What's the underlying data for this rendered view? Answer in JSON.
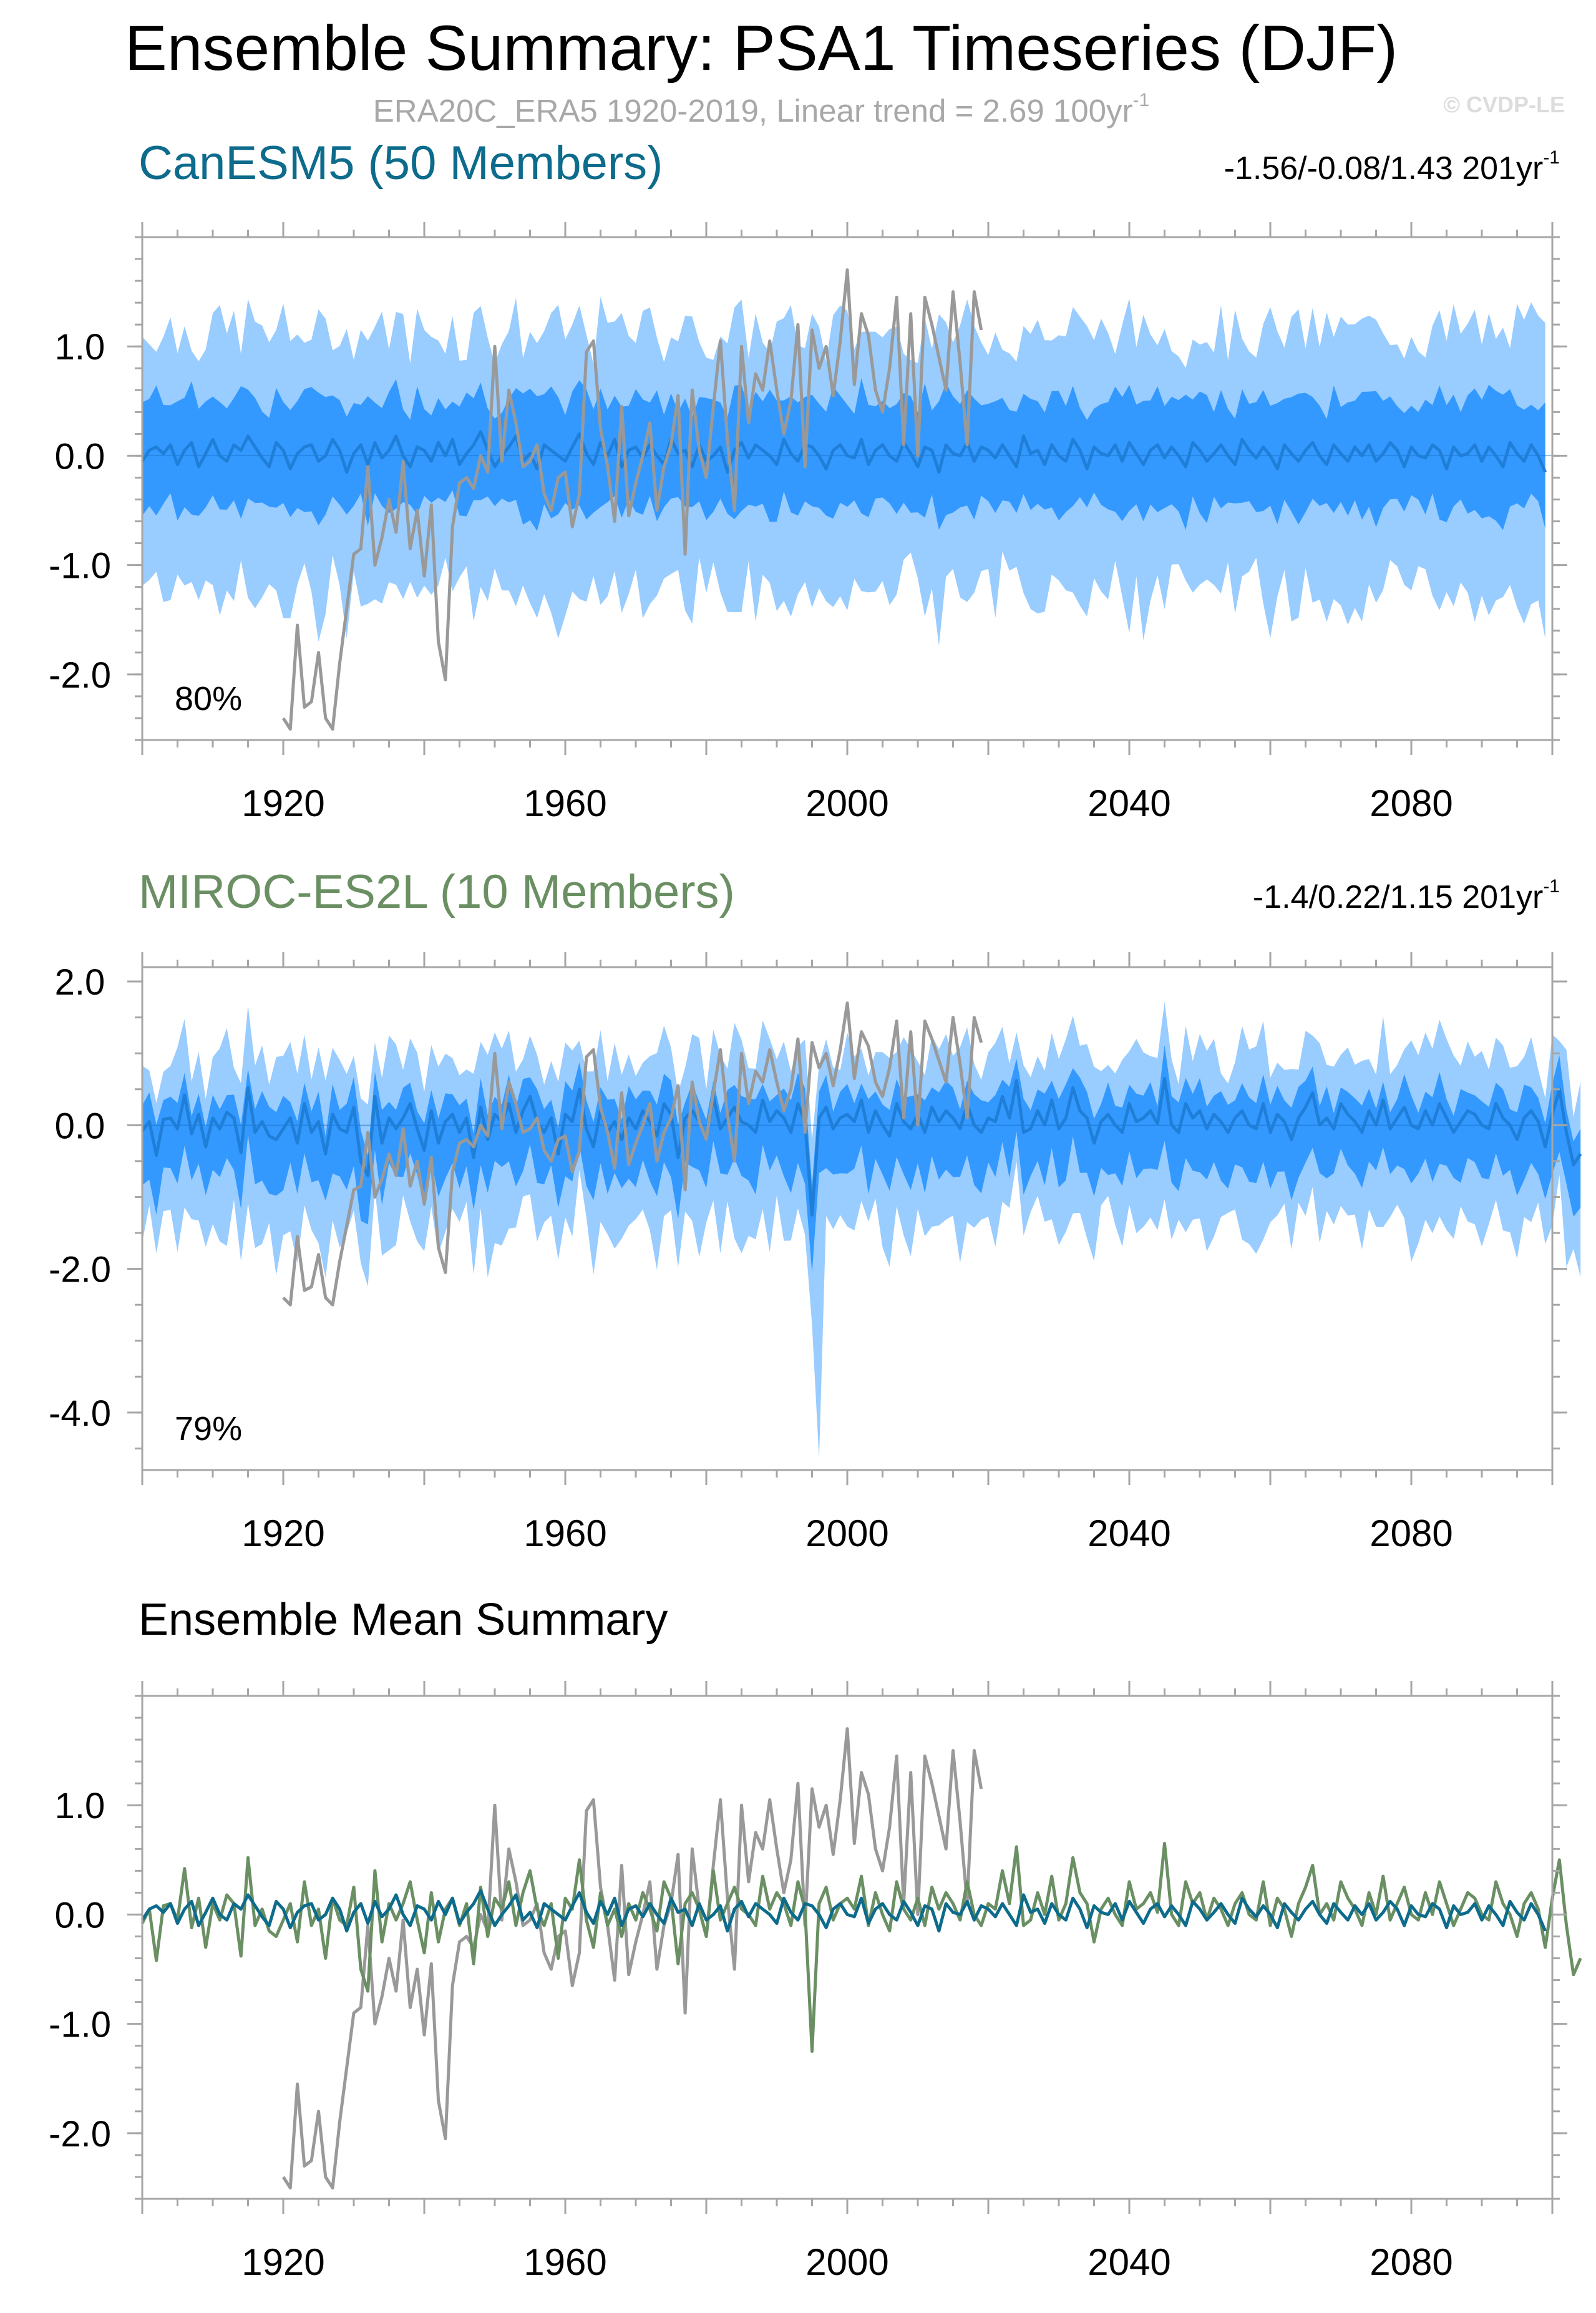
{
  "title": "Ensemble Summary: PSA1 Timeseries (DJF)",
  "subtitle": "ERA20C_ERA5 1920-2019, Linear trend = 2.69 100yr",
  "subtitle_sup": "-1",
  "watermark": "© CVDP-LE",
  "colors": {
    "outer_band": "#99ccff",
    "inner_band": "#3399ff",
    "ens_mean_line": "#1f7fd8",
    "obs": "#999999",
    "canesm5": "#0d6b8c",
    "miroc": "#6a8f63",
    "axis": "#a6a6a6"
  },
  "chart_data": [
    {
      "type": "area",
      "name": "canesm5",
      "title": "CanESM5 (50 Members)",
      "stats": "-1.56/-0.08/1.43 201yr",
      "stats_sup": "-1",
      "percent_label": "80%",
      "xlim": [
        1900,
        2100
      ],
      "ylim": [
        -2.6,
        2.0
      ],
      "xticks": [
        "1920",
        "1960",
        "2000",
        "2040",
        "2080"
      ],
      "yticks": [
        "1.0",
        "0.0",
        "-1.0",
        "-2.0"
      ],
      "outer_halfwidth": 1.05,
      "inner_halfwidth": 0.48,
      "band_center": -0.1,
      "series": [
        "ensemble_mean",
        "10-90th percentile",
        "25-75th percentile",
        "observations"
      ]
    },
    {
      "type": "area",
      "name": "miroc-es2l",
      "title": "MIROC-ES2L (10 Members)",
      "stats": "-1.4/0.22/1.15 201yr",
      "stats_sup": "-1",
      "percent_label": "79%",
      "xlim": [
        1900,
        2100
      ],
      "ylim": [
        -4.8,
        2.2
      ],
      "xticks": [
        "1920",
        "1960",
        "2000",
        "2040",
        "2080"
      ],
      "yticks": [
        "2.0",
        "0.0",
        "-2.0",
        "-4.0"
      ],
      "outer_halfwidth": 1.05,
      "inner_halfwidth": 0.52,
      "band_center": -0.3,
      "series": [
        "ensemble_mean",
        "10-90th percentile",
        "25-75th percentile",
        "observations"
      ]
    },
    {
      "type": "line",
      "name": "ensemble-mean-summary",
      "title": "Ensemble Mean Summary",
      "xlim": [
        1900,
        2100
      ],
      "ylim": [
        -2.6,
        2.0
      ],
      "xticks": [
        "1920",
        "1960",
        "2000",
        "2040",
        "2080"
      ],
      "yticks": [
        "1.0",
        "0.0",
        "-1.0",
        "-2.0"
      ],
      "series": [
        "CanESM5 ensemble mean",
        "MIROC-ES2L ensemble mean",
        "ERA20C_ERA5"
      ]
    }
  ],
  "obs_series": {
    "x_start": 1920,
    "values": [
      -2.4,
      -2.5,
      -1.55,
      -2.3,
      -2.25,
      -1.8,
      -2.4,
      -2.5,
      -1.9,
      -1.4,
      -0.9,
      -0.85,
      -0.1,
      -1.0,
      -0.75,
      -0.4,
      -0.7,
      -0.05,
      -0.85,
      -0.5,
      -1.1,
      -0.45,
      -1.7,
      -2.05,
      -0.65,
      -0.25,
      -0.2,
      -0.3,
      0.0,
      -0.15,
      1.0,
      -0.05,
      0.6,
      0.3,
      -0.1,
      -0.05,
      0.1,
      -0.35,
      -0.5,
      -0.2,
      -0.15,
      -0.65,
      -0.35,
      0.95,
      1.05,
      0.25,
      -0.1,
      -0.6,
      0.45,
      -0.55,
      -0.25,
      0.0,
      0.3,
      -0.5,
      -0.1,
      0.1,
      0.55,
      -0.9,
      0.6,
      0.05,
      -0.2,
      0.45,
      1.05,
      0.15,
      -0.5,
      1.0,
      0.3,
      0.75,
      0.6,
      1.05,
      0.6,
      0.2,
      0.5,
      1.2,
      -0.1,
      1.15,
      0.8,
      1.0,
      0.55,
      1.05,
      1.7,
      0.65,
      1.3,
      1.1,
      0.6,
      0.4,
      0.8,
      1.45,
      0.1,
      1.3,
      0.0,
      1.45,
      1.2,
      0.9,
      0.6,
      1.5,
      0.85,
      0.1,
      1.5,
      1.15
    ]
  },
  "canesm5_mean": {
    "x_start": 1900,
    "values": [
      -0.05,
      0.05,
      0.08,
      0.02,
      0.1,
      -0.08,
      0.05,
      0.12,
      -0.1,
      0.02,
      0.15,
      0.0,
      -0.05,
      0.1,
      0.05,
      0.18,
      0.08,
      -0.02,
      -0.1,
      0.12,
      0.05,
      -0.12,
      0.02,
      0.08,
      0.1,
      -0.05,
      0.0,
      0.15,
      0.05,
      -0.15,
      0.02,
      0.1,
      -0.08,
      0.12,
      -0.02,
      0.05,
      0.18,
      0.0,
      -0.1,
      0.08,
      0.05,
      -0.05,
      0.12,
      0.0,
      0.15,
      -0.08,
      0.02,
      0.1,
      0.22,
      0.05,
      -0.1,
      0.0,
      0.08,
      0.18,
      -0.05,
      0.02,
      -0.12,
      0.1,
      0.05,
      0.0,
      -0.05,
      0.08,
      0.2,
      0.02,
      -0.08,
      0.12,
      0.0,
      0.15,
      -0.1,
      0.05,
      0.08,
      -0.02,
      0.1,
      0.0,
      -0.08,
      0.15,
      0.02,
      0.05,
      -0.1,
      0.1,
      -0.05,
      0.0,
      0.08,
      -0.15,
      0.05,
      0.12,
      -0.02,
      0.1,
      0.05,
      0.0,
      -0.08,
      0.15,
      0.02,
      -0.05,
      0.1,
      0.08,
      0.0,
      -0.12,
      0.05,
      0.1,
      0.0,
      -0.02,
      0.15,
      -0.08,
      0.05,
      0.1,
      0.0,
      -0.05,
      0.12,
      0.02,
      -0.1,
      0.08,
      0.05,
      -0.15,
      0.1,
      0.02,
      0.0,
      0.12,
      -0.05,
      0.08,
      0.05,
      -0.02,
      0.1,
      0.0,
      -0.1,
      0.18,
      0.02,
      0.05,
      -0.08,
      0.1,
      0.0,
      -0.05,
      0.15,
      0.05,
      -0.12,
      0.08,
      0.02,
      0.0,
      0.1,
      -0.05,
      0.12,
      0.02,
      -0.08,
      0.05,
      0.1,
      -0.02,
      0.08,
      0.0,
      -0.1,
      0.12,
      0.05,
      -0.05,
      0.02,
      0.1,
      0.0,
      -0.08,
      0.15,
      0.05,
      -0.02,
      0.08,
      0.0,
      -0.12,
      0.1,
      0.02,
      -0.05,
      0.05,
      0.12,
      0.0,
      -0.08,
      0.1,
      0.02,
      -0.05,
      0.08,
      0.0,
      0.1,
      -0.05,
      0.02,
      0.12,
      0.05,
      -0.1,
      0.08,
      0.0,
      -0.02,
      0.1,
      0.05,
      -0.12,
      0.08,
      0.0,
      0.02,
      0.1,
      -0.05,
      0.08,
      0.0,
      -0.1,
      0.12,
      0.02,
      -0.05,
      0.1,
      0.0,
      -0.15
    ]
  },
  "miroc_mean": {
    "x_start": 1900,
    "values": [
      -0.08,
      0.05,
      -0.42,
      0.08,
      0.1,
      -0.05,
      0.42,
      -0.12,
      0.15,
      -0.3,
      0.1,
      -0.05,
      0.18,
      0.1,
      -0.38,
      0.52,
      -0.1,
      0.05,
      -0.15,
      -0.2,
      -0.05,
      0.1,
      -0.25,
      0.3,
      -0.1,
      0.05,
      -0.4,
      0.15,
      -0.05,
      -0.1,
      0.25,
      -0.5,
      -0.7,
      0.4,
      -0.25,
      0.1,
      -0.05,
      0.1,
      0.3,
      -0.05,
      -0.35,
      0.2,
      -0.25,
      0.05,
      0.15,
      -0.1,
      0.1,
      -0.45,
      0.25,
      -0.2,
      0.15,
      0.05,
      0.3,
      -0.1,
      0.2,
      0.4,
      0.05,
      -0.1,
      0.1,
      -0.4,
      0.15,
      0.05,
      0.5,
      -0.05,
      -0.3,
      0.2,
      -0.1,
      0.05,
      -0.2,
      0.1,
      -0.05,
      0.2,
      0.05,
      -0.15,
      0.3,
      0.15,
      -0.45,
      0.1,
      0.2,
      0.05,
      -0.2,
      0.4,
      -0.05,
      0.1,
      0.25,
      0.05,
      0.0,
      -0.1,
      0.35,
      0.05,
      0.2,
      0.1,
      -0.1,
      0.3,
      0.05,
      -1.25,
      0.1,
      0.25,
      -0.05,
      0.1,
      0.15,
      0.05,
      0.35,
      -0.1,
      0.2,
      0.0,
      -0.15,
      0.3,
      0.05,
      -0.05,
      0.15,
      -0.1,
      0.25,
      0.05,
      0.2,
      0.1,
      -0.05,
      0.3,
      0.0,
      -0.1,
      0.1,
      0.05,
      0.4,
      0.1,
      0.62,
      -0.1,
      -0.05,
      0.2,
      0.0,
      0.35,
      -0.05,
      0.1,
      0.52,
      0.2,
      0.1,
      -0.25,
      0.05,
      0.15,
      0.0,
      -0.1,
      0.3,
      0.05,
      0.1,
      0.2,
      0.02,
      0.65,
      0.0,
      -0.1,
      0.3,
      0.1,
      0.2,
      -0.05,
      0.15,
      0.05,
      -0.1,
      0.1,
      0.2,
      0.0,
      -0.05,
      0.3,
      -0.1,
      0.15,
      0.05,
      -0.2,
      0.1,
      0.25,
      0.45,
      0.0,
      0.1,
      -0.05,
      0.3,
      0.15,
      0.05,
      -0.1,
      0.2,
      0.0,
      0.35,
      -0.05,
      0.1,
      0.25,
      0.0,
      -0.05,
      0.2,
      0.0,
      0.3,
      0.1,
      -0.1,
      0.05,
      0.2,
      0.15,
      0.0,
      -0.05,
      0.3,
      0.1,
      0.0,
      -0.2,
      0.1,
      0.2,
      0.05,
      -0.3,
      0.15,
      0.5,
      -0.1,
      -0.55,
      -0.4
    ]
  }
}
